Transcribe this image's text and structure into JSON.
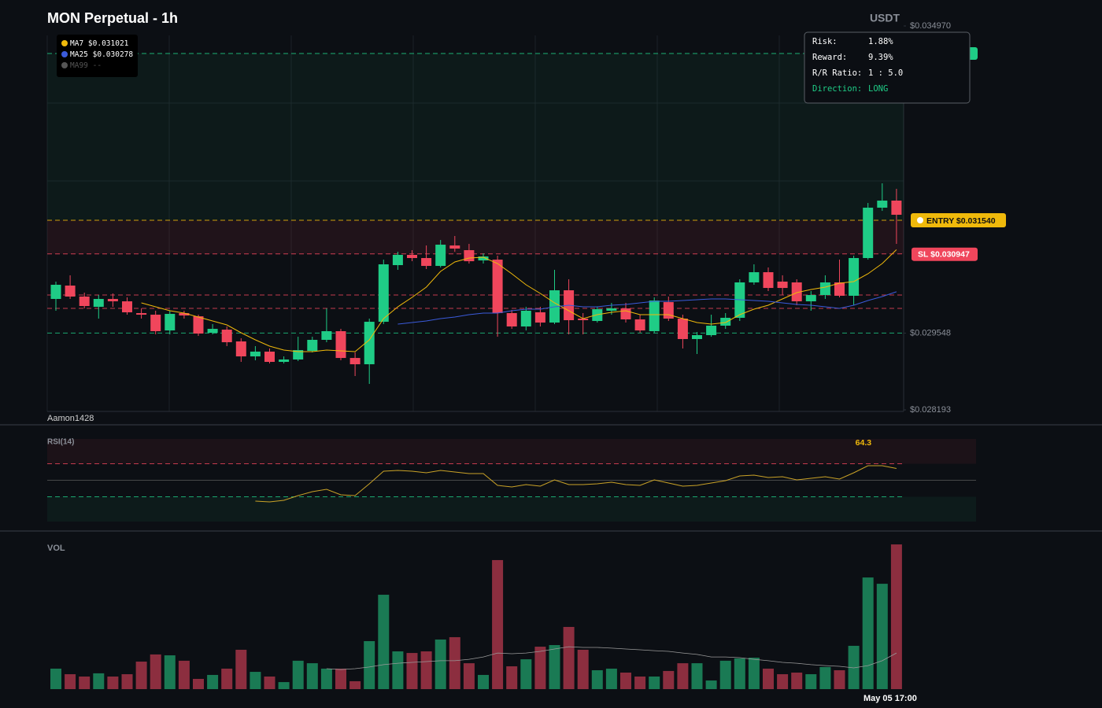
{
  "chart_data": [
    {
      "type": "candlestick",
      "title": "MON Perpetual - 1h",
      "unit": "USDT",
      "watermark": "Aamon1428",
      "categories": [
        null,
        null,
        null,
        null,
        null,
        null,
        null,
        null,
        null,
        null,
        null,
        null,
        null,
        null,
        null,
        null,
        null,
        null,
        null,
        null,
        null,
        null,
        null,
        null,
        null,
        null,
        null,
        null,
        null,
        null,
        null,
        null,
        null,
        null,
        null,
        null,
        null,
        null,
        null,
        null,
        null,
        null,
        null,
        null,
        null,
        null,
        null,
        null,
        null,
        null,
        null,
        null,
        null,
        null,
        null,
        null,
        null,
        null,
        null,
        "May 05 17:00"
      ],
      "open": [
        0.030151,
        0.030387,
        0.030193,
        0.030012,
        0.030151,
        0.030109,
        0.029901,
        0.029873,
        0.029595,
        0.029901,
        0.029845,
        0.029554,
        0.029609,
        0.029401,
        0.029137,
        0.029221,
        0.02904,
        0.029082,
        0.029234,
        0.029429,
        0.029582,
        0.029109,
        0.028998,
        0.029748,
        0.030748,
        0.030929,
        0.030873,
        0.030734,
        0.031095,
        0.031012,
        0.030831,
        0.030845,
        0.029901,
        0.029665,
        0.029915,
        0.029734,
        0.030304,
        0.029804,
        0.029762,
        0.029943,
        0.029984,
        0.02979,
        0.029582,
        0.030095,
        0.029804,
        0.029443,
        0.029512,
        0.029679,
        0.029818,
        0.030443,
        0.030623,
        0.030457,
        0.030443,
        0.030109,
        0.03022,
        0.030443,
        0.030207,
        0.030873,
        0.031762,
        0.031887
      ],
      "high": [
        0.030457,
        0.030568,
        0.030262,
        0.03022,
        0.030248,
        0.030179,
        0.029984,
        0.029943,
        0.029943,
        0.029943,
        0.029873,
        0.029707,
        0.029665,
        0.029457,
        0.029318,
        0.029276,
        0.029137,
        0.029484,
        0.029484,
        0.029984,
        0.029623,
        0.029207,
        0.029804,
        0.030845,
        0.030984,
        0.031012,
        0.031095,
        0.031192,
        0.031262,
        0.031123,
        0.030956,
        0.030915,
        0.029957,
        0.030012,
        0.030012,
        0.030665,
        0.030498,
        0.029901,
        0.030012,
        0.030081,
        0.030081,
        0.029873,
        0.030179,
        0.030193,
        0.029873,
        0.029568,
        0.029873,
        0.029901,
        0.030498,
        0.030762,
        0.030706,
        0.030568,
        0.030498,
        0.03029,
        0.030568,
        0.030845,
        0.030915,
        0.031845,
        0.032192,
        0.032095
      ],
      "low": [
        0.029943,
        0.030151,
        0.029984,
        0.029804,
        0.030012,
        0.029873,
        0.029804,
        0.029526,
        0.029526,
        0.029804,
        0.029498,
        0.029526,
        0.029318,
        0.02904,
        0.029068,
        0.029012,
        0.029012,
        0.029054,
        0.029207,
        0.029387,
        0.029068,
        0.02879,
        0.028651,
        0.029707,
        0.030665,
        0.030817,
        0.030679,
        0.030706,
        0.030984,
        0.030776,
        0.030776,
        0.029484,
        0.029623,
        0.029595,
        0.029665,
        0.029707,
        0.029526,
        0.029526,
        0.029734,
        0.029873,
        0.029734,
        0.029554,
        0.029554,
        0.029762,
        0.029276,
        0.029179,
        0.029484,
        0.029623,
        0.029762,
        0.030401,
        0.03029,
        0.03022,
        0.03004,
        0.029943,
        0.030151,
        0.030179,
        0.03004,
        0.030845,
        0.031706,
        0.031123
      ],
      "close": [
        0.030401,
        0.030193,
        0.030026,
        0.030151,
        0.030109,
        0.029915,
        0.029873,
        0.029582,
        0.029887,
        0.029859,
        0.02954,
        0.029623,
        0.029387,
        0.029137,
        0.029221,
        0.02904,
        0.029082,
        0.029248,
        0.029429,
        0.029582,
        0.029109,
        0.028998,
        0.029748,
        0.030762,
        0.030929,
        0.030873,
        0.030734,
        0.031109,
        0.03104,
        0.030817,
        0.030901,
        0.029901,
        0.029665,
        0.029943,
        0.029734,
        0.030304,
        0.029776,
        0.029776,
        0.02997,
        0.029984,
        0.02979,
        0.029595,
        0.030123,
        0.029804,
        0.029443,
        0.029512,
        0.029679,
        0.029818,
        0.030443,
        0.030623,
        0.030345,
        0.030345,
        0.030109,
        0.03022,
        0.030443,
        0.030207,
        0.030873,
        0.031762,
        0.031887,
        0.031637
      ],
      "up_color": "#1fcc86",
      "down_color": "#f0465c",
      "ylim": [
        0.028193,
        0.03497
      ],
      "yticks": [
        {
          "value": 0.03497,
          "label": "$0.034970"
        },
        {
          "value": 0.029548,
          "label": "$0.029548"
        },
        {
          "value": 0.028193,
          "label": "$0.028193"
        }
      ],
      "series": [
        {
          "name": "MA7",
          "label": "$0.031021",
          "color": "#f0b90b",
          "values": [
            null,
            null,
            null,
            null,
            null,
            null,
            0.030081,
            0.030012,
            0.029943,
            0.029901,
            0.029832,
            0.029762,
            0.029693,
            0.029554,
            0.029429,
            0.029318,
            0.029248,
            0.029221,
            0.029221,
            0.029248,
            0.029234,
            0.029221,
            0.029429,
            0.029804,
            0.030012,
            0.030179,
            0.030359,
            0.030637,
            0.030804,
            0.030873,
            0.030887,
            0.030776,
            0.030595,
            0.030401,
            0.030248,
            0.030081,
            0.029943,
            0.029804,
            0.029873,
            0.029915,
            0.029943,
            0.029873,
            0.029873,
            0.029873,
            0.029804,
            0.029734,
            0.029707,
            0.029734,
            0.029873,
            0.02997,
            0.03004,
            0.030151,
            0.030262,
            0.030318,
            0.030359,
            0.030429,
            0.030457,
            0.030595,
            0.030776,
            0.031021
          ]
        },
        {
          "name": "MA25",
          "label": "$0.030278",
          "color": "#3b5bdb",
          "values": [
            null,
            null,
            null,
            null,
            null,
            null,
            null,
            null,
            null,
            null,
            null,
            null,
            null,
            null,
            null,
            null,
            null,
            null,
            null,
            null,
            null,
            null,
            null,
            null,
            0.029707,
            0.029734,
            0.029762,
            0.029804,
            0.029832,
            0.029873,
            0.029901,
            0.029901,
            0.029943,
            0.02997,
            0.02997,
            0.030012,
            0.03004,
            0.030012,
            0.030012,
            0.03004,
            0.030054,
            0.030081,
            0.030109,
            0.030109,
            0.030123,
            0.030137,
            0.030151,
            0.030151,
            0.030137,
            0.030123,
            0.030109,
            0.030081,
            0.030054,
            0.03004,
            0.030012,
            0.029984,
            0.03004,
            0.030123,
            0.030193,
            0.030278
          ]
        },
        {
          "name": "MA99",
          "label": "--",
          "color": "#555555"
        }
      ],
      "take_profit": {
        "value": 0.034484,
        "color": "#1fcc86"
      },
      "entry": {
        "value": 0.03154,
        "label": "ENTRY $0.031540",
        "color": "#f0b90b"
      },
      "stop_loss": {
        "value": 0.030947,
        "label": "SL $0.030947",
        "color": "#f0465c"
      },
      "levels": [
        {
          "value": 0.03022,
          "color": "#f0465c"
        },
        {
          "value": 0.029984,
          "color": "#f0465c"
        },
        {
          "value": 0.029548,
          "color": "#1fcc86"
        }
      ],
      "info": [
        {
          "label": "Risk:",
          "value": "1.88%"
        },
        {
          "label": "Reward:",
          "value": "9.39%"
        },
        {
          "label": "R/R Ratio:",
          "value": "1 : 5.0"
        },
        {
          "label": "Direction:",
          "value": "LONG"
        }
      ]
    },
    {
      "type": "line",
      "title": "RSI(14)",
      "ylim": [
        0,
        100
      ],
      "levels": [
        {
          "value": 70,
          "color": "#f0465c",
          "dashed": true
        },
        {
          "value": 50,
          "color": "#555555",
          "dashed": false
        },
        {
          "value": 30,
          "color": "#1fcc86",
          "dashed": true
        }
      ],
      "series": [
        {
          "color": "#c9a227",
          "values": [
            null,
            null,
            null,
            null,
            null,
            null,
            null,
            null,
            null,
            null,
            null,
            null,
            null,
            null,
            24.8,
            23.8,
            25.7,
            31.4,
            36.2,
            39.0,
            32.4,
            31.4,
            45.7,
            61.0,
            61.9,
            61.0,
            59.0,
            61.9,
            60.0,
            58.1,
            58.1,
            43.8,
            41.9,
            44.8,
            42.9,
            50.5,
            44.8,
            44.8,
            45.7,
            47.6,
            44.8,
            43.8,
            50.5,
            46.7,
            42.9,
            43.8,
            46.7,
            49.5,
            55.2,
            56.2,
            53.3,
            54.3,
            50.5,
            52.4,
            54.3,
            51.4,
            59.0,
            67.6,
            67.6,
            64.3
          ]
        }
      ]
    },
    {
      "type": "bar",
      "title": "VOL",
      "ylim": [
        0,
        100
      ],
      "up_color": "#1a7a54",
      "down_color": "#8c2e3f",
      "values": [
        14.0,
        10.2,
        8.6,
        10.8,
        8.6,
        10.2,
        18.8,
        23.7,
        23.1,
        19.4,
        7.0,
        9.7,
        14.0,
        26.9,
        11.8,
        8.6,
        4.8,
        19.4,
        17.7,
        14.0,
        14.0,
        5.4,
        32.8,
        64.5,
        25.8,
        24.7,
        25.8,
        33.9,
        35.5,
        17.7,
        9.7,
        88.2,
        15.6,
        20.4,
        29.0,
        30.1,
        42.5,
        26.9,
        12.9,
        14.0,
        11.3,
        8.6,
        8.6,
        12.4,
        17.7,
        17.7,
        5.9,
        19.4,
        21.0,
        21.5,
        14.0,
        10.2,
        11.3,
        10.2,
        15.1,
        12.9,
        29.6,
        76.3,
        72.0,
        98.9
      ],
      "series": [
        {
          "color": "#9a9a9a",
          "values": [
            null,
            null,
            null,
            null,
            null,
            null,
            null,
            null,
            null,
            null,
            null,
            null,
            null,
            null,
            null,
            null,
            null,
            null,
            null,
            14.0,
            13.4,
            14.0,
            15.1,
            16.7,
            17.7,
            18.3,
            18.8,
            19.4,
            19.4,
            20.4,
            22.0,
            24.7,
            24.2,
            24.7,
            25.8,
            27.4,
            29.0,
            28.5,
            28.5,
            28.0,
            27.4,
            26.9,
            26.3,
            25.8,
            24.7,
            23.7,
            22.0,
            22.0,
            21.5,
            20.4,
            19.4,
            18.3,
            17.7,
            16.7,
            16.1,
            15.6,
            14.5,
            16.1,
            19.4,
            24.7
          ]
        }
      ]
    }
  ]
}
